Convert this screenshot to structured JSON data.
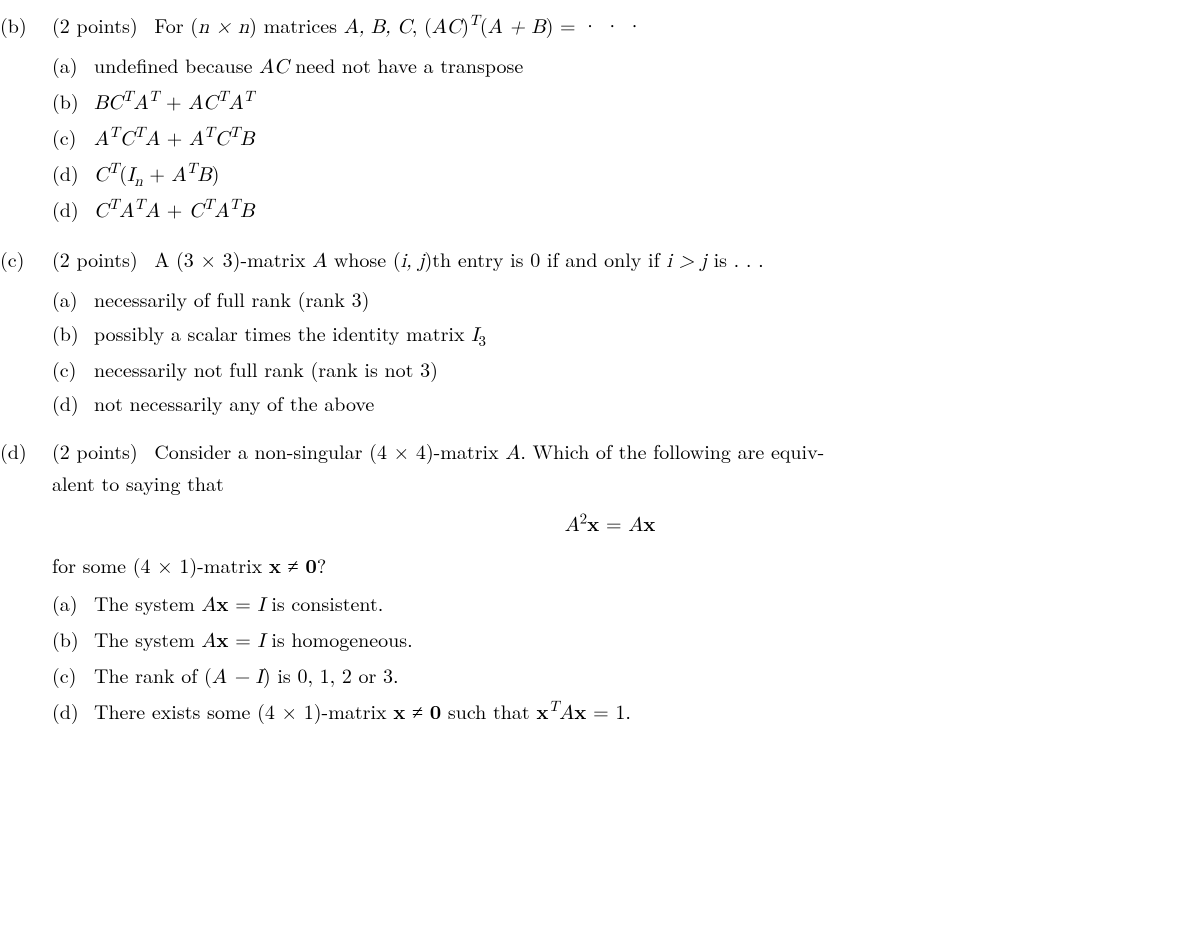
{
  "colors": {
    "text": "#000000",
    "background": "#ffffff"
  },
  "typography": {
    "fontsize_pt": 15,
    "line_height": 1.5,
    "font_family": "Latin Modern Roman, Computer Modern, serif"
  },
  "problems": [
    {
      "label": "(b)",
      "points": "(2 points)",
      "intro_prefix": "For (",
      "intro_math1": "n × n",
      "intro_mid1": ") matrices ",
      "intro_math2": "A, B, C",
      "intro_mid2": ", (",
      "intro_math3": "AC",
      "intro_mid3": ")",
      "intro_sup": "T",
      "intro_mid4": "(",
      "intro_math4": "A + B",
      "intro_mid5": ") = · · ·",
      "options": [
        {
          "label": "(a)",
          "text": "undefined because ",
          "math1": "AC",
          "text2": " need not have a transpose"
        },
        {
          "label": "(b)",
          "html": "<span class='math'>BC<sup>T</sup>A<sup>T</sup></span> + <span class='math'>AC<sup>T</sup>A<sup>T</sup></span>"
        },
        {
          "label": "(c)",
          "html": "<span class='math'>A<sup>T</sup>C<sup>T</sup>A</span> + <span class='math'>A<sup>T</sup>C<sup>T</sup>B</span>"
        },
        {
          "label": "(d)",
          "html": "<span class='math'>C<sup>T</sup></span>(<span class='math'>I<sub>n</sub></span> + <span class='math'>A<sup>T</sup>B</span>)"
        },
        {
          "label": "(d)",
          "html": "<span class='math'>C<sup>T</sup>A<sup>T</sup>A</span> + <span class='math'>C<sup>T</sup>A<sup>T</sup>B</span>"
        }
      ]
    },
    {
      "label": "(c)",
      "points": "(2 points)",
      "intro_prefix": "A (3 × 3)-matrix ",
      "intro_mathA": "A",
      "intro_mid1": " whose (",
      "intro_mathij": "i, j",
      "intro_mid2": ")th entry is 0 if and only if ",
      "intro_mathcond": "i > j",
      "intro_mid3": " is . . .",
      "options": [
        {
          "label": "(a)",
          "text": "necessarily of full rank (rank 3)"
        },
        {
          "label": "(b)",
          "text": "possibly a scalar times the identity matrix ",
          "math1": "I",
          "sub1": "3"
        },
        {
          "label": "(c)",
          "text": "necessarily not full rank (rank is not 3)"
        },
        {
          "label": "(d)",
          "text": "not necessarily any of the above"
        }
      ]
    },
    {
      "label": "(d)",
      "points": "(2 points)",
      "intro": "Consider a non-singular (4 × 4)-matrix ",
      "intro_mathA": "A",
      "intro_mid1": ". Which of the following are equiv-",
      "intro_line2": "alent to saying that",
      "equation": "A²x = Ax",
      "continuation_prefix": "for some (4 × 1)-matrix ",
      "continuation_mathx": "x",
      "continuation_mid": " ≠ ",
      "continuation_math0": "0",
      "continuation_end": "?",
      "options": [
        {
          "label": "(a)",
          "text_pre": "The system ",
          "math1": "Ax",
          "text_mid": " = ",
          "math2": "I",
          "text_post": " is consistent."
        },
        {
          "label": "(b)",
          "text_pre": "The system ",
          "math1": "Ax",
          "text_mid": " = ",
          "math2": "I",
          "text_post": " is homogeneous."
        },
        {
          "label": "(c)",
          "text_pre": "The rank of (",
          "math1": "A − I",
          "text_post": ") is 0, 1, 2 or 3."
        },
        {
          "label": "(d)",
          "text_pre": "There exists some (4 × 1)-matrix ",
          "math1": "x",
          "text_mid": " ≠ ",
          "math2": "0",
          "text_mid2": " such that ",
          "math3": "x",
          "sup3": "T",
          "math4": "Ax",
          "text_mid3": " = 1."
        }
      ]
    }
  ]
}
